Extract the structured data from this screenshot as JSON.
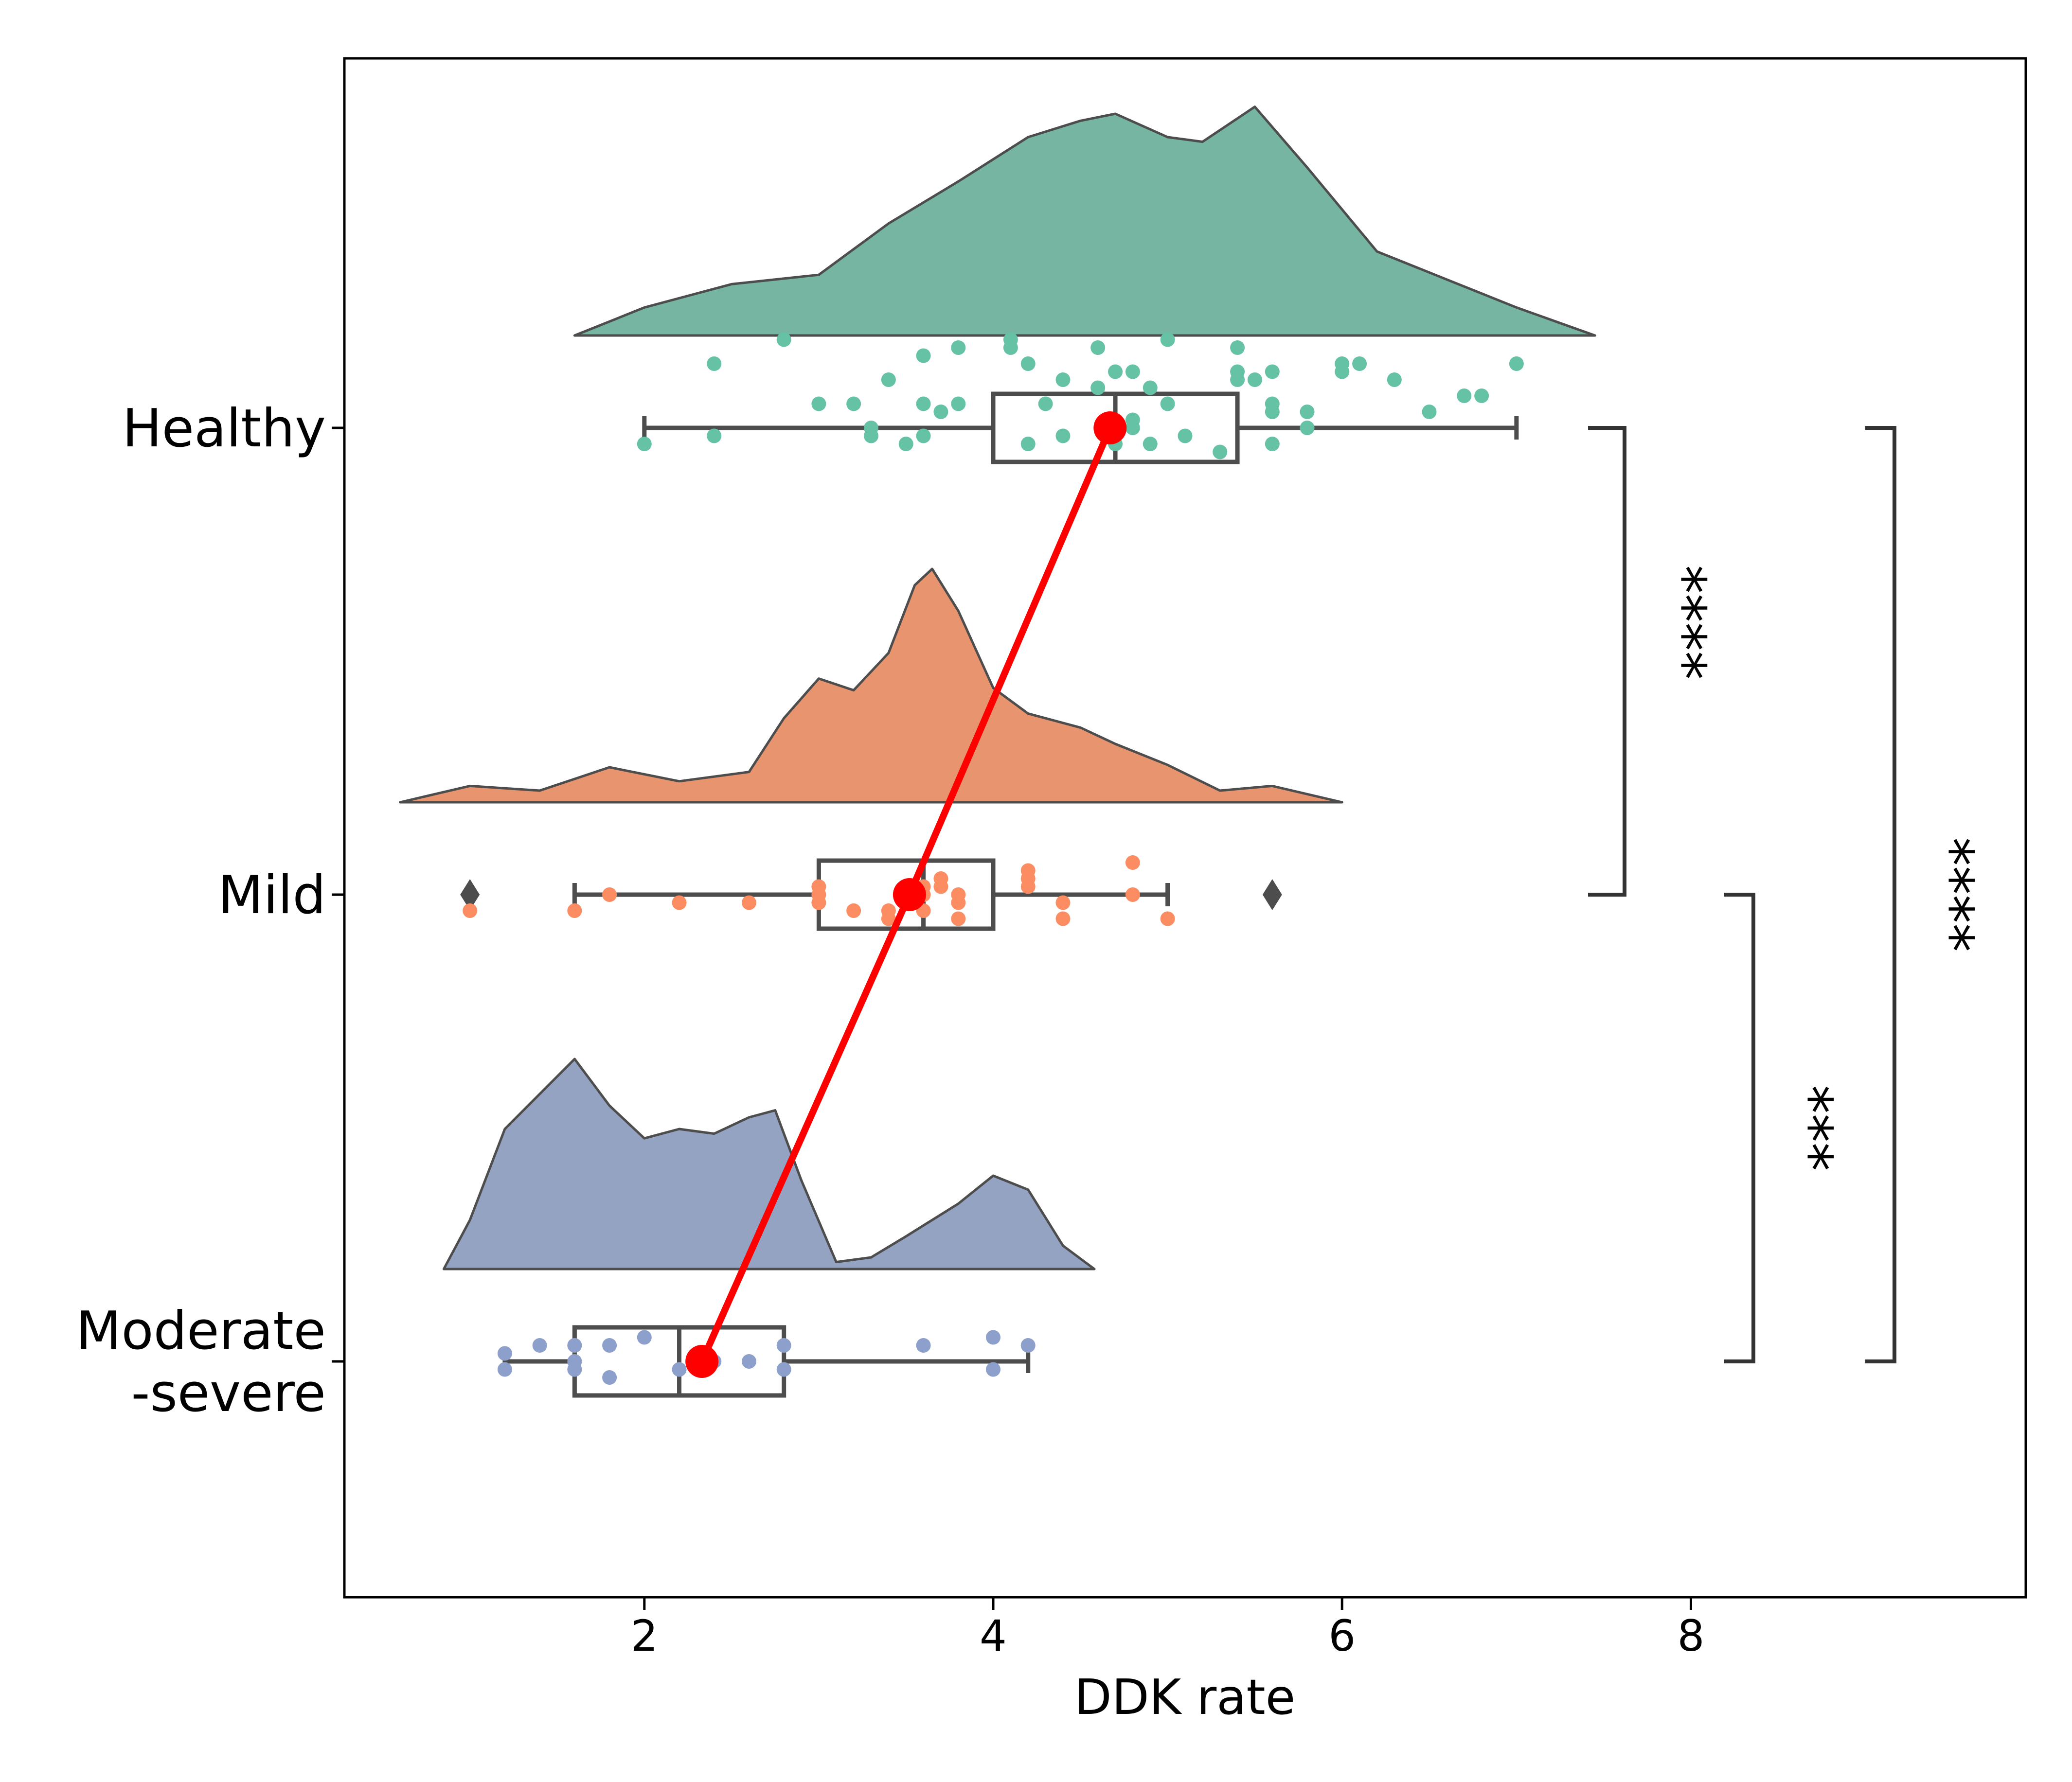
{
  "chart_data": {
    "type": "raincloud",
    "orientation": "horizontal",
    "xlabel": "DDK rate",
    "ylabel": "",
    "title": "",
    "xlim": [
      0.28,
      9.92
    ],
    "xticks": [
      2,
      4,
      6,
      8
    ],
    "xtick_labels": [
      "2",
      "4",
      "6",
      "8"
    ],
    "categories": [
      "Healthy",
      "Mild",
      "Moderate\n-severe"
    ],
    "category_lines": [
      [
        "Healthy"
      ],
      [
        "Mild"
      ],
      [
        "Moderate",
        "-severe"
      ]
    ],
    "grid": false,
    "groups": [
      {
        "name": "Healthy",
        "color": "#75b5a1",
        "point_color": "#66c2a5",
        "box": {
          "whisker_low": 2.0,
          "q1": 4.0,
          "median": 4.7,
          "q3": 5.4,
          "whisker_high": 7.0
        },
        "mean": 4.67,
        "outliers": [],
        "density": {
          "x": [
            1.6,
            2.0,
            2.5,
            3.0,
            3.4,
            3.8,
            4.2,
            4.5,
            4.7,
            5.0,
            5.2,
            5.5,
            5.8,
            6.2,
            6.6,
            7.0,
            7.45
          ],
          "dens": [
            0.0,
            0.12,
            0.22,
            0.26,
            0.48,
            0.66,
            0.85,
            0.92,
            0.95,
            0.85,
            0.83,
            0.98,
            0.72,
            0.36,
            0.24,
            0.12,
            0.0
          ]
        },
        "points": [
          [
            2.0,
            -0.2
          ],
          [
            2.4,
            0.8
          ],
          [
            2.4,
            -0.1
          ],
          [
            2.8,
            1.1
          ],
          [
            3.0,
            0.3
          ],
          [
            3.2,
            0.3
          ],
          [
            3.3,
            0.0
          ],
          [
            3.3,
            -0.1
          ],
          [
            3.4,
            0.6
          ],
          [
            3.5,
            -0.2
          ],
          [
            3.6,
            0.9
          ],
          [
            3.6,
            0.3
          ],
          [
            3.6,
            -0.1
          ],
          [
            3.7,
            0.2
          ],
          [
            3.8,
            0.3
          ],
          [
            3.8,
            1.0
          ],
          [
            4.1,
            1.1
          ],
          [
            4.1,
            1.0
          ],
          [
            4.2,
            0.8
          ],
          [
            4.2,
            -0.2
          ],
          [
            4.3,
            0.3
          ],
          [
            4.4,
            0.6
          ],
          [
            4.4,
            -0.1
          ],
          [
            4.6,
            0.5
          ],
          [
            4.6,
            1.0
          ],
          [
            4.7,
            0.7
          ],
          [
            4.7,
            -0.2
          ],
          [
            4.8,
            0.7
          ],
          [
            4.8,
            0.0
          ],
          [
            4.8,
            0.1
          ],
          [
            4.9,
            0.5
          ],
          [
            4.9,
            -0.2
          ],
          [
            5.0,
            0.3
          ],
          [
            5.0,
            1.1
          ],
          [
            5.1,
            -0.1
          ],
          [
            5.3,
            -0.3
          ],
          [
            5.4,
            0.7
          ],
          [
            5.4,
            1.0
          ],
          [
            5.4,
            0.6
          ],
          [
            5.5,
            0.6
          ],
          [
            5.6,
            0.2
          ],
          [
            5.6,
            0.3
          ],
          [
            5.6,
            -0.2
          ],
          [
            5.6,
            0.7
          ],
          [
            5.8,
            0.0
          ],
          [
            5.8,
            0.2
          ],
          [
            6.0,
            0.7
          ],
          [
            6.0,
            0.8
          ],
          [
            6.1,
            0.8
          ],
          [
            6.3,
            0.6
          ],
          [
            6.5,
            0.2
          ],
          [
            6.7,
            0.4
          ],
          [
            6.8,
            0.4
          ],
          [
            7.0,
            0.8
          ]
        ]
      },
      {
        "name": "Mild",
        "color": "#e8956f",
        "point_color": "#fc8d62",
        "box": {
          "whisker_low": 1.6,
          "q1": 3.0,
          "median": 3.6,
          "q3": 4.0,
          "whisker_high": 5.0
        },
        "mean": 3.52,
        "outliers": [
          1.0,
          5.6
        ],
        "density": {
          "x": [
            0.6,
            1.0,
            1.4,
            1.8,
            2.2,
            2.6,
            2.8,
            3.0,
            3.2,
            3.4,
            3.55,
            3.65,
            3.8,
            4.0,
            4.2,
            4.5,
            4.7,
            5.0,
            5.3,
            5.6,
            6.0
          ],
          "dens": [
            0.0,
            0.07,
            0.05,
            0.15,
            0.09,
            0.13,
            0.36,
            0.53,
            0.48,
            0.64,
            0.93,
            1.0,
            0.82,
            0.49,
            0.38,
            0.32,
            0.25,
            0.16,
            0.05,
            0.07,
            0.0
          ]
        },
        "points": [
          [
            1.0,
            -0.2
          ],
          [
            1.6,
            -0.2
          ],
          [
            1.8,
            0.0
          ],
          [
            2.2,
            -0.1
          ],
          [
            2.6,
            -0.1
          ],
          [
            3.0,
            0.1
          ],
          [
            3.0,
            -0.1
          ],
          [
            3.0,
            0.0
          ],
          [
            3.2,
            -0.2
          ],
          [
            3.4,
            -0.2
          ],
          [
            3.4,
            -0.3
          ],
          [
            3.5,
            0.0
          ],
          [
            3.5,
            0.1
          ],
          [
            3.6,
            0.0
          ],
          [
            3.6,
            0.1
          ],
          [
            3.6,
            -0.2
          ],
          [
            3.7,
            0.2
          ],
          [
            3.7,
            0.1
          ],
          [
            3.8,
            0.0
          ],
          [
            3.8,
            -0.1
          ],
          [
            3.8,
            -0.3
          ],
          [
            4.2,
            0.3
          ],
          [
            4.2,
            0.2
          ],
          [
            4.2,
            0.1
          ],
          [
            4.4,
            -0.1
          ],
          [
            4.4,
            -0.3
          ],
          [
            4.8,
            0.0
          ],
          [
            4.8,
            0.4
          ],
          [
            5.0,
            -0.3
          ]
        ]
      },
      {
        "name": "Moderate\n-severe",
        "color": "#95a3c3",
        "point_color": "#8da0cb",
        "box": {
          "whisker_low": 1.2,
          "q1": 1.6,
          "median": 2.2,
          "q3": 2.8,
          "whisker_high": 4.2
        },
        "mean": 2.33,
        "outliers": [],
        "density": {
          "x": [
            0.85,
            1.0,
            1.2,
            1.4,
            1.6,
            1.8,
            2.0,
            2.2,
            2.4,
            2.6,
            2.75,
            2.9,
            3.1,
            3.3,
            3.5,
            3.8,
            4.0,
            4.2,
            4.4,
            4.58
          ],
          "dens": [
            0.0,
            0.21,
            0.6,
            0.75,
            0.9,
            0.7,
            0.56,
            0.6,
            0.58,
            0.65,
            0.68,
            0.38,
            0.03,
            0.05,
            0.14,
            0.28,
            0.4,
            0.34,
            0.1,
            0.0
          ]
        },
        "points": [
          [
            1.2,
            0.1
          ],
          [
            1.2,
            -0.1
          ],
          [
            1.4,
            0.2
          ],
          [
            1.6,
            0.2
          ],
          [
            1.6,
            0.0
          ],
          [
            1.6,
            -0.1
          ],
          [
            1.8,
            0.2
          ],
          [
            1.8,
            -0.2
          ],
          [
            2.0,
            0.3
          ],
          [
            2.2,
            -0.1
          ],
          [
            2.4,
            0.0
          ],
          [
            2.6,
            0.0
          ],
          [
            2.8,
            0.2
          ],
          [
            2.8,
            -0.1
          ],
          [
            3.6,
            0.2
          ],
          [
            4.0,
            0.3
          ],
          [
            4.0,
            -0.1
          ],
          [
            4.2,
            0.2
          ]
        ]
      }
    ],
    "mean_line_color": "#ff0000",
    "significance": [
      {
        "pair": [
          "Healthy",
          "Mild"
        ],
        "label": "****"
      },
      {
        "pair": [
          "Mild",
          "Moderate\n-severe"
        ],
        "label": "***"
      },
      {
        "pair": [
          "Healthy",
          "Moderate\n-severe"
        ],
        "label": "****"
      }
    ]
  }
}
